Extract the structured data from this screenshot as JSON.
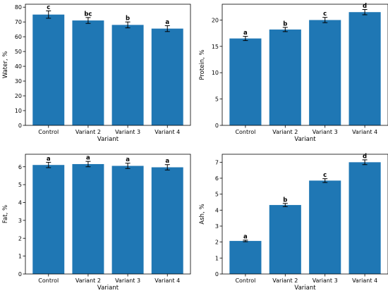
{
  "chart_data": [
    {
      "type": "bar",
      "categories": [
        "Control",
        "Variant 2",
        "Variant 3",
        "Variant 4"
      ],
      "values": [
        75.0,
        71.0,
        68.0,
        65.5
      ],
      "errors": [
        2.5,
        2.0,
        2.0,
        2.0
      ],
      "significance": [
        "c",
        "bc",
        "b",
        "a"
      ],
      "xlabel": "Variant",
      "ylabel": "Water, %",
      "ylim": [
        0,
        82
      ],
      "yticks": [
        0,
        10,
        20,
        30,
        40,
        50,
        60,
        70,
        80
      ],
      "grid": false,
      "color": "#1f77b4"
    },
    {
      "type": "bar",
      "categories": [
        "Control",
        "Variant 2",
        "Variant 3",
        "Variant 4"
      ],
      "values": [
        16.5,
        18.2,
        20.0,
        21.5
      ],
      "errors": [
        0.4,
        0.4,
        0.5,
        0.5
      ],
      "significance": [
        "a",
        "b",
        "c",
        "d"
      ],
      "xlabel": "Variant",
      "ylabel": "Protein, %",
      "ylim": [
        0,
        23
      ],
      "yticks": [
        0,
        5,
        10,
        15,
        20
      ],
      "grid": false,
      "color": "#1f77b4"
    },
    {
      "type": "bar",
      "categories": [
        "Control",
        "Variant 2",
        "Variant 3",
        "Variant 4"
      ],
      "values": [
        6.1,
        6.15,
        6.05,
        5.97
      ],
      "errors": [
        0.15,
        0.15,
        0.15,
        0.15
      ],
      "significance": [
        "a",
        "a",
        "a",
        "a"
      ],
      "xlabel": "Variant",
      "ylabel": "Fat, %",
      "ylim": [
        0,
        6.7
      ],
      "yticks": [
        0,
        1,
        2,
        3,
        4,
        5,
        6
      ],
      "grid": false,
      "color": "#1f77b4"
    },
    {
      "type": "bar",
      "categories": [
        "Control",
        "Variant 2",
        "Variant 3",
        "Variant 4"
      ],
      "values": [
        2.07,
        4.32,
        5.85,
        7.0
      ],
      "errors": [
        0.05,
        0.1,
        0.12,
        0.15
      ],
      "significance": [
        "a",
        "b",
        "c",
        "d"
      ],
      "xlabel": "Variant",
      "ylabel": "Ash, %",
      "ylim": [
        0,
        7.5
      ],
      "yticks": [
        0,
        1,
        2,
        3,
        4,
        5,
        6,
        7
      ],
      "grid": false,
      "color": "#1f77b4"
    }
  ]
}
